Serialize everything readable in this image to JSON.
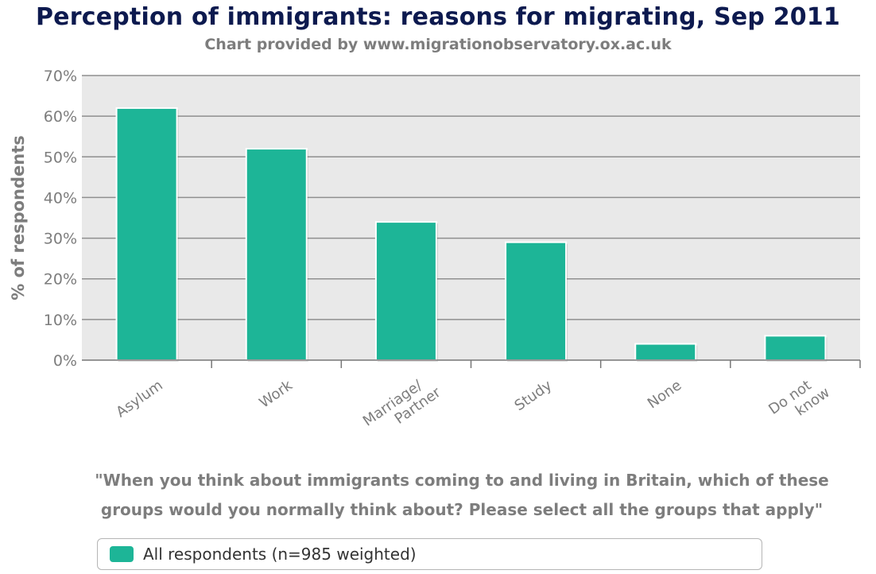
{
  "chart_data": {
    "type": "bar",
    "title": "Perception of immigrants: reasons for migrating, Sep 2011",
    "subtitle": "Chart provided by www.migrationobservatory.ox.ac.uk",
    "xlabel": "",
    "ylabel": "% of respondents",
    "categories": [
      "Asylum",
      "Work",
      "Marriage/\nPartner",
      "Study",
      "None",
      "Do not\nknow"
    ],
    "series": [
      {
        "name": "All respondents (n=985 weighted)",
        "values": [
          62,
          52,
          34,
          29,
          4,
          6
        ]
      }
    ],
    "ylim": [
      0,
      70
    ],
    "yticks": [
      "0%",
      "10%",
      "20%",
      "30%",
      "40%",
      "50%",
      "60%",
      "70%"
    ],
    "grid": true,
    "legend_position": "bottom",
    "caption_lines": [
      "\"When you think about immigrants coming to and living in Britain, which of these",
      "groups would you normally think about? Please select all the groups that apply\""
    ]
  },
  "colors": {
    "bar": "#1db597",
    "plot_background": "#e9e9e9",
    "gridline": "#8f8f8f",
    "title": "#0d1a4f",
    "axis_text": "#7d7d7d"
  }
}
